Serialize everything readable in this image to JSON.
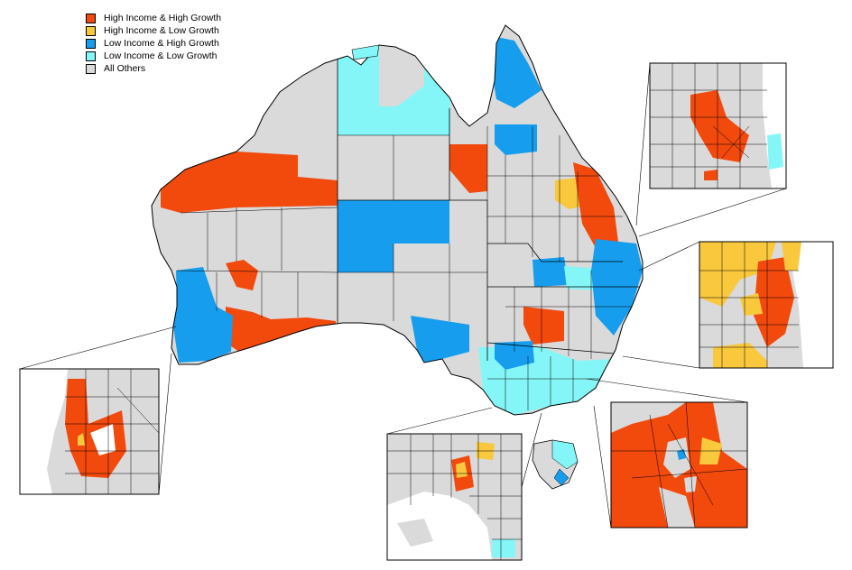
{
  "legend": {
    "items": [
      {
        "label": "High Income & High Growth",
        "color": "#f2490d"
      },
      {
        "label": "High Income & Low Growth",
        "color": "#f9c83c"
      },
      {
        "label": "Low Income & High Growth",
        "color": "#169ded"
      },
      {
        "label": "Low Income & Low Growth",
        "color": "#85f6f7"
      },
      {
        "label": "All Others",
        "color": "#dadada"
      }
    ]
  },
  "colors": {
    "border": "#000000",
    "sea": "#ffffff"
  }
}
